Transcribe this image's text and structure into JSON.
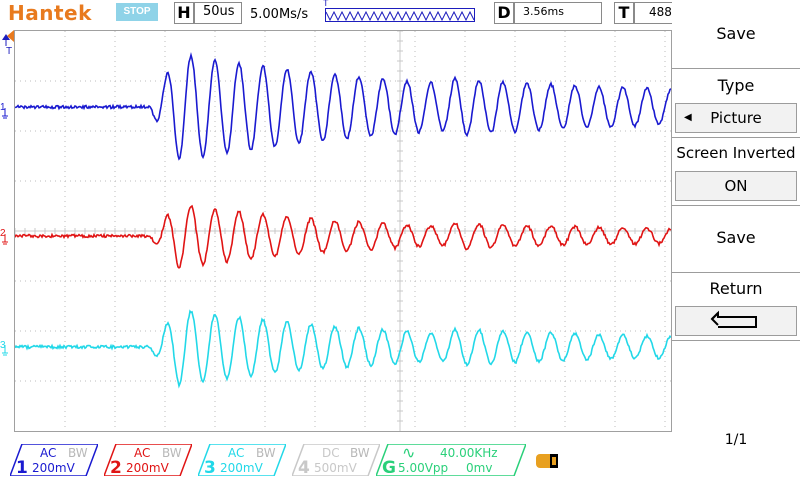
{
  "brand": "Hantek",
  "status": "STOP",
  "timebase": {
    "key": "H",
    "value": "50us",
    "sample_rate": "5.00Ms/s"
  },
  "trigger_delay": {
    "key": "D",
    "value": "3.56ms"
  },
  "time_field": {
    "key": "T",
    "value": "488"
  },
  "colors": {
    "ch1": "#1a1ad0",
    "ch2": "#e01414",
    "ch3": "#22d8e8",
    "ch4": "#c8c8c8",
    "gen": "#2ad07a",
    "brand": "#e87a1e"
  },
  "markers": {
    "trigger": "T",
    "ch1": "1",
    "ch2": "2",
    "ch3": "3"
  },
  "menu": {
    "title": "Save",
    "type_label": "Type",
    "type_value": "Picture",
    "screen_inverted_label": "Screen Inverted",
    "screen_inverted_value": "ON",
    "save_label": "Save",
    "return_label": "Return",
    "page": "1/1"
  },
  "channels": [
    {
      "num": "1",
      "coupling": "AC",
      "bw": "BW",
      "vdiv": "200mV"
    },
    {
      "num": "2",
      "coupling": "AC",
      "bw": "BW",
      "vdiv": "200mV"
    },
    {
      "num": "3",
      "coupling": "AC",
      "bw": "BW",
      "vdiv": "200mV"
    },
    {
      "num": "4",
      "coupling": "DC",
      "bw": "BW",
      "vdiv": "500mV"
    }
  ],
  "generator": {
    "key": "G",
    "frequency": "40.00KHz",
    "amplitude": "5.00Vpp",
    "offset": "0mv"
  }
}
